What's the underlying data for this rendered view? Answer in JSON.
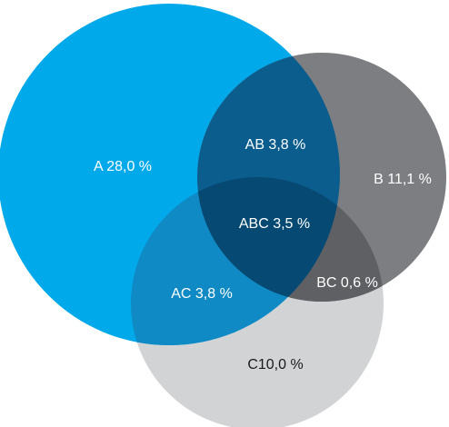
{
  "diagram": {
    "type": "venn",
    "sets": [
      {
        "id": "A",
        "color": "#00a9ea"
      },
      {
        "id": "B",
        "color": "#7d7e82"
      },
      {
        "id": "C",
        "color": "#d2d3d5"
      }
    ],
    "overlap_colors": {
      "AB": "#0b5d8e",
      "AC": "#0f8ac5",
      "BC": "#5f6064",
      "ABC": "#064a73"
    },
    "labels": {
      "A": "A 28,0 %",
      "B": "B 11,1 %",
      "C": "C10,0 %",
      "AB": "AB 3,8 %",
      "AC": "AC 3,8 %",
      "BC": "BC 0,6 %",
      "ABC": "ABC 3,5 %"
    }
  }
}
